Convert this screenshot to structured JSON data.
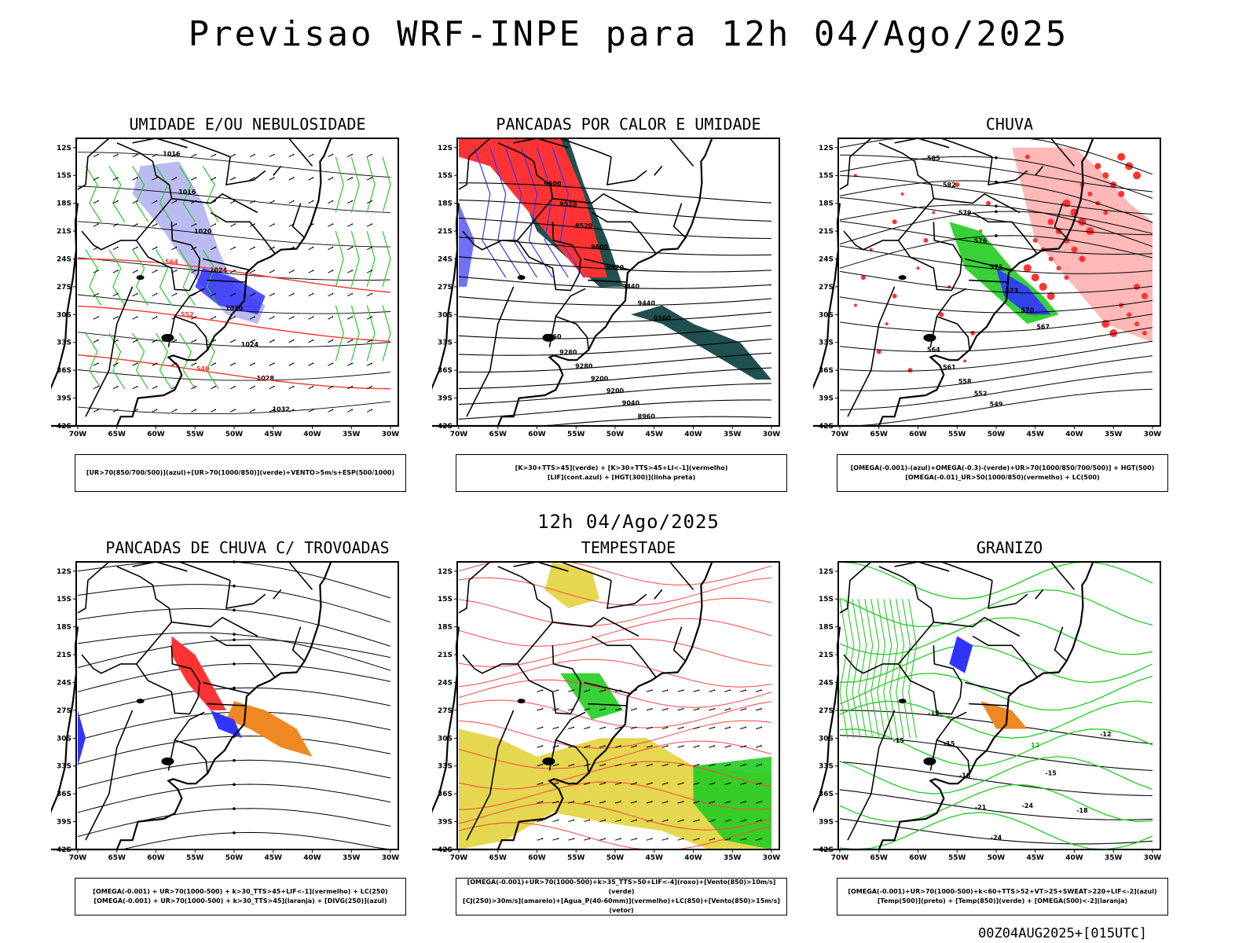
{
  "title": "Previsao WRF-INPE  para 12h 04/Ago/2025",
  "subtitle": "12h 04/Ago/2025",
  "footer": "00Z04AUG2025+[015UTC]",
  "axes": {
    "lat_labels": [
      "12S",
      "15S",
      "18S",
      "21S",
      "24S",
      "27S",
      "30S",
      "33S",
      "36S",
      "39S",
      "42S"
    ],
    "lon_labels": [
      "70W",
      "65W",
      "60W",
      "55W",
      "50W",
      "45W",
      "40W",
      "35W",
      "30W"
    ]
  },
  "colors": {
    "green": "#22cc22",
    "red": "#ff3333",
    "blue": "#3333ff",
    "lavender": "#aaaaee",
    "darkteal": "#1f4f4f",
    "yellow": "#e0d030",
    "orange": "#ee8822"
  },
  "panels": [
    {
      "title": "UMIDADE E/OU NEBULOSIDADE",
      "legend": [
        "[UR>70(850/700/500)](azul)+[UR>70(1000/850)](verde)+VENTO>5m/s+ESP(500/1000)"
      ],
      "contour_labels": [
        "1016",
        "1016",
        "1020",
        "1024",
        "1020",
        "1024",
        "1028",
        "1032",
        "564",
        "552",
        "540",
        "1024",
        "1020"
      ]
    },
    {
      "title": "PANCADAS POR CALOR E UMIDADE",
      "legend": [
        "[K>30+TTS>45](verde) + [K>30+TTS>45+LI<-1](vermelho)",
        "[LIF](cont.azul) + [HGT(300)](linha preta)"
      ],
      "contour_labels": [
        "9600",
        "9520",
        "9520",
        "9600",
        "9520",
        "9440",
        "9440",
        "9360",
        "9360",
        "9280",
        "9280",
        "9200",
        "9200",
        "9040",
        "8960"
      ]
    },
    {
      "title": "CHUVA",
      "legend": [
        "[OMEGA(-0.001)-(azul)+OMEGA(-0.3)-(verde)+UR>70(1000/850/700/500)] + HGT(500)",
        "[OMEGA(-0.01)_UR>50(1000/850)(vermelho) + LC(500)"
      ],
      "contour_labels": [
        "585",
        "582",
        "579",
        "576",
        "573",
        "573",
        "570",
        "567",
        "564",
        "561",
        "558",
        "552",
        "549",
        "585"
      ]
    },
    {
      "title": "PANCADAS DE CHUVA C/ TROVOADAS",
      "legend": [
        "[OMEGA(-0.001) + UR>70(1000-500) + k>30_TTS>45+LIF<-1](vermelho) + LC(250)",
        "[OMEGA(-0.001) + UR>70(1000-500) + k>30_TTS>45](laranja) + [DIVG(250)](azul)"
      ],
      "contour_labels": []
    },
    {
      "title": "TEMPESTADE",
      "legend": [
        "[OMEGA(-0.001)+UR>70(1000-500)+k>35_TTS>50+LIF<-4](roxo)+[Vento(850)>10m/s](verde)",
        "[CJ(250)>30m/s](amarelo)+[Agua_P(40-60mm)](vermelho)+LC(850)+[Vento(850)>15m/s](vetor)"
      ],
      "contour_labels": []
    },
    {
      "title": "GRANIZO",
      "legend": [
        "[OMEGA(-0.001)+UR>70(1000-500)+k<60+TTS>52+VT>25+SWEAT>220+LIF<-2](azul)",
        "[Temp(500)](preto) + [Temp(850)](verde) + [OMEGA(500)<-2](laranja)"
      ],
      "contour_labels": [
        "-12",
        "-15",
        "-18",
        "-21",
        "-24",
        "-12",
        "12",
        "16",
        "17",
        "18"
      ]
    }
  ]
}
